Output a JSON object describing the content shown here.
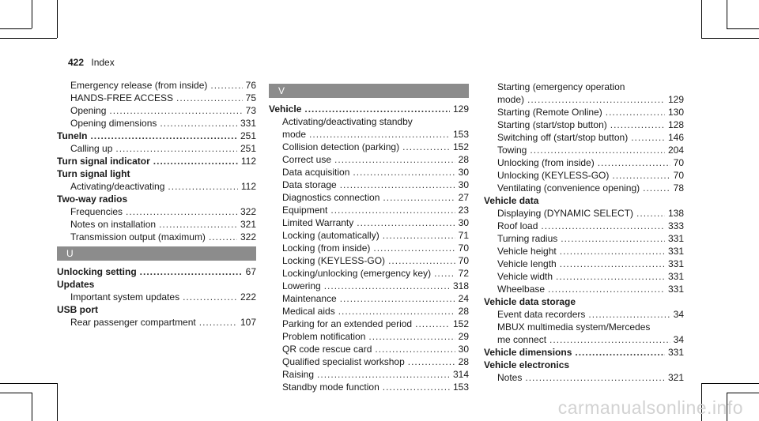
{
  "header": {
    "page_number": "422",
    "section": "Index"
  },
  "columns": [
    {
      "entries": [
        {
          "kind": "sub",
          "text": "Emergency release (from inside)",
          "page": "76"
        },
        {
          "kind": "sub",
          "text": "HANDS-FREE ACCESS",
          "page": "75"
        },
        {
          "kind": "sub",
          "text": "Opening",
          "page": "73"
        },
        {
          "kind": "sub",
          "text": "Opening dimensions",
          "page": "331"
        },
        {
          "kind": "head",
          "text": "TuneIn",
          "page": "251"
        },
        {
          "kind": "sub",
          "text": "Calling up",
          "page": "251"
        },
        {
          "kind": "head",
          "text": "Turn signal indicator",
          "page": "112"
        },
        {
          "kind": "head",
          "text": "Turn signal light",
          "page": ""
        },
        {
          "kind": "sub",
          "text": "Activating/deactivating",
          "page": "112"
        },
        {
          "kind": "head",
          "text": "Two-way radios",
          "page": ""
        },
        {
          "kind": "sub",
          "text": "Frequencies",
          "page": "322"
        },
        {
          "kind": "sub",
          "text": "Notes on installation",
          "page": "321"
        },
        {
          "kind": "sub",
          "text": "Transmission output (maximum)",
          "page": "322"
        },
        {
          "kind": "letter",
          "text": "U"
        },
        {
          "kind": "head",
          "text": "Unlocking setting",
          "page": "67"
        },
        {
          "kind": "head",
          "text": "Updates",
          "page": ""
        },
        {
          "kind": "sub",
          "text": "Important system updates",
          "page": "222"
        },
        {
          "kind": "head",
          "text": "USB port",
          "page": ""
        },
        {
          "kind": "sub",
          "text": "Rear passenger compartment",
          "page": "107"
        }
      ]
    },
    {
      "entries": [
        {
          "kind": "letter",
          "text": "V"
        },
        {
          "kind": "head",
          "text": "Vehicle",
          "page": "129"
        },
        {
          "kind": "cont",
          "text": "Activating/deactivating standby"
        },
        {
          "kind": "sub",
          "text": "mode",
          "page": "153"
        },
        {
          "kind": "sub",
          "text": "Collision detection (parking)",
          "page": "152"
        },
        {
          "kind": "sub",
          "text": "Correct use",
          "page": "28"
        },
        {
          "kind": "sub",
          "text": "Data acquisition",
          "page": "30"
        },
        {
          "kind": "sub",
          "text": "Data storage",
          "page": "30"
        },
        {
          "kind": "sub",
          "text": "Diagnostics connection",
          "page": "27"
        },
        {
          "kind": "sub",
          "text": "Equipment",
          "page": "23"
        },
        {
          "kind": "sub",
          "text": "Limited Warranty",
          "page": "30"
        },
        {
          "kind": "sub",
          "text": "Locking (automatically)",
          "page": "71"
        },
        {
          "kind": "sub",
          "text": "Locking (from inside)",
          "page": "70"
        },
        {
          "kind": "sub",
          "text": "Locking (KEYLESS-GO)",
          "page": "70"
        },
        {
          "kind": "sub",
          "text": "Locking/unlocking (emergency key)",
          "page": "72"
        },
        {
          "kind": "sub",
          "text": "Lowering",
          "page": "318"
        },
        {
          "kind": "sub",
          "text": "Maintenance",
          "page": "24"
        },
        {
          "kind": "sub",
          "text": "Medical aids",
          "page": "28"
        },
        {
          "kind": "sub",
          "text": "Parking for an extended period",
          "page": "152"
        },
        {
          "kind": "sub",
          "text": "Problem notification",
          "page": "29"
        },
        {
          "kind": "sub",
          "text": "QR code rescue card",
          "page": "30"
        },
        {
          "kind": "sub",
          "text": "Qualified specialist workshop",
          "page": "28"
        },
        {
          "kind": "sub",
          "text": "Raising",
          "page": "314"
        },
        {
          "kind": "sub",
          "text": "Standby mode function",
          "page": "153"
        }
      ]
    },
    {
      "entries": [
        {
          "kind": "cont",
          "text": "Starting (emergency operation"
        },
        {
          "kind": "sub",
          "text": "mode)",
          "page": "129"
        },
        {
          "kind": "sub",
          "text": "Starting (Remote Online)",
          "page": "130"
        },
        {
          "kind": "sub",
          "text": "Starting (start/stop button)",
          "page": "128"
        },
        {
          "kind": "sub",
          "text": "Switching off (start/stop button)",
          "page": "146"
        },
        {
          "kind": "sub",
          "text": "Towing",
          "page": "204"
        },
        {
          "kind": "sub",
          "text": "Unlocking (from inside)",
          "page": "70"
        },
        {
          "kind": "sub",
          "text": "Unlocking (KEYLESS-GO)",
          "page": "70"
        },
        {
          "kind": "sub",
          "text": "Ventilating (convenience opening)",
          "page": "78"
        },
        {
          "kind": "head",
          "text": "Vehicle data",
          "page": ""
        },
        {
          "kind": "sub",
          "text": "Displaying (DYNAMIC SELECT)",
          "page": "138"
        },
        {
          "kind": "sub",
          "text": "Roof load",
          "page": "333"
        },
        {
          "kind": "sub",
          "text": "Turning radius",
          "page": "331"
        },
        {
          "kind": "sub",
          "text": "Vehicle height",
          "page": "331"
        },
        {
          "kind": "sub",
          "text": "Vehicle length",
          "page": "331"
        },
        {
          "kind": "sub",
          "text": "Vehicle width",
          "page": "331"
        },
        {
          "kind": "sub",
          "text": "Wheelbase",
          "page": "331"
        },
        {
          "kind": "head",
          "text": "Vehicle data storage",
          "page": ""
        },
        {
          "kind": "sub",
          "text": "Event data recorders",
          "page": "34"
        },
        {
          "kind": "cont",
          "text": "MBUX multimedia system/Mercedes"
        },
        {
          "kind": "sub",
          "text": "me connect",
          "page": "34"
        },
        {
          "kind": "head",
          "text": "Vehicle dimensions",
          "page": "331"
        },
        {
          "kind": "head",
          "text": "Vehicle electronics",
          "page": ""
        },
        {
          "kind": "sub",
          "text": "Notes",
          "page": "321"
        }
      ]
    }
  ],
  "watermark": "carmanualsonline.info"
}
